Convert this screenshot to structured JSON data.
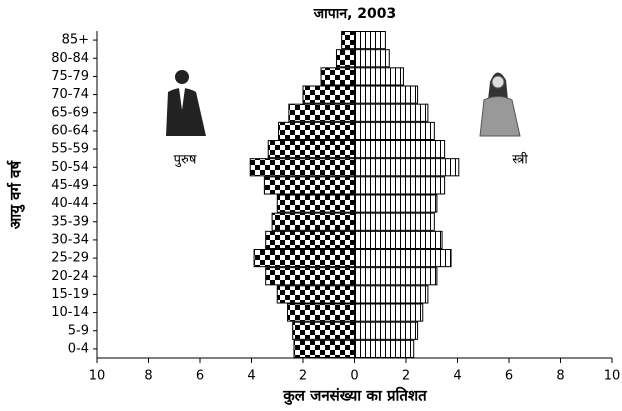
{
  "chart_data": {
    "type": "pyramid",
    "title": "जापान, 2003",
    "x_label": "कुल जनसंख्या का प्रतिशत",
    "y_label": "आयु वर्ग वर्ष",
    "categories": [
      "85+",
      "80-84",
      "75-79",
      "70-74",
      "65-69",
      "60-64",
      "55-59",
      "50-54",
      "45-49",
      "40-44",
      "35-39",
      "30-34",
      "25-29",
      "20-24",
      "15-19",
      "10-14",
      "5-9",
      "0-4"
    ],
    "series": [
      {
        "name": "पुरुष",
        "color": "#000000",
        "pattern": "checker",
        "values": [
          0.5,
          0.7,
          1.3,
          2.0,
          2.55,
          2.95,
          3.35,
          4.05,
          3.5,
          3.0,
          3.2,
          3.45,
          3.9,
          3.45,
          3.0,
          2.6,
          2.4,
          2.35
        ]
      },
      {
        "name": "स्त्री",
        "color": "#000000",
        "pattern": "stripes",
        "values": [
          1.2,
          1.35,
          1.9,
          2.45,
          2.85,
          3.1,
          3.5,
          4.05,
          3.5,
          3.2,
          3.1,
          3.4,
          3.75,
          3.2,
          2.85,
          2.65,
          2.45,
          2.3
        ]
      }
    ],
    "xlim": [
      -10,
      10
    ],
    "xticks": [
      {
        "value": -10,
        "label": "10"
      },
      {
        "value": -8,
        "label": "8"
      },
      {
        "value": -6,
        "label": "6"
      },
      {
        "value": -4,
        "label": "4"
      },
      {
        "value": -2,
        "label": "2"
      },
      0,
      2,
      4,
      6,
      8,
      10
    ]
  }
}
